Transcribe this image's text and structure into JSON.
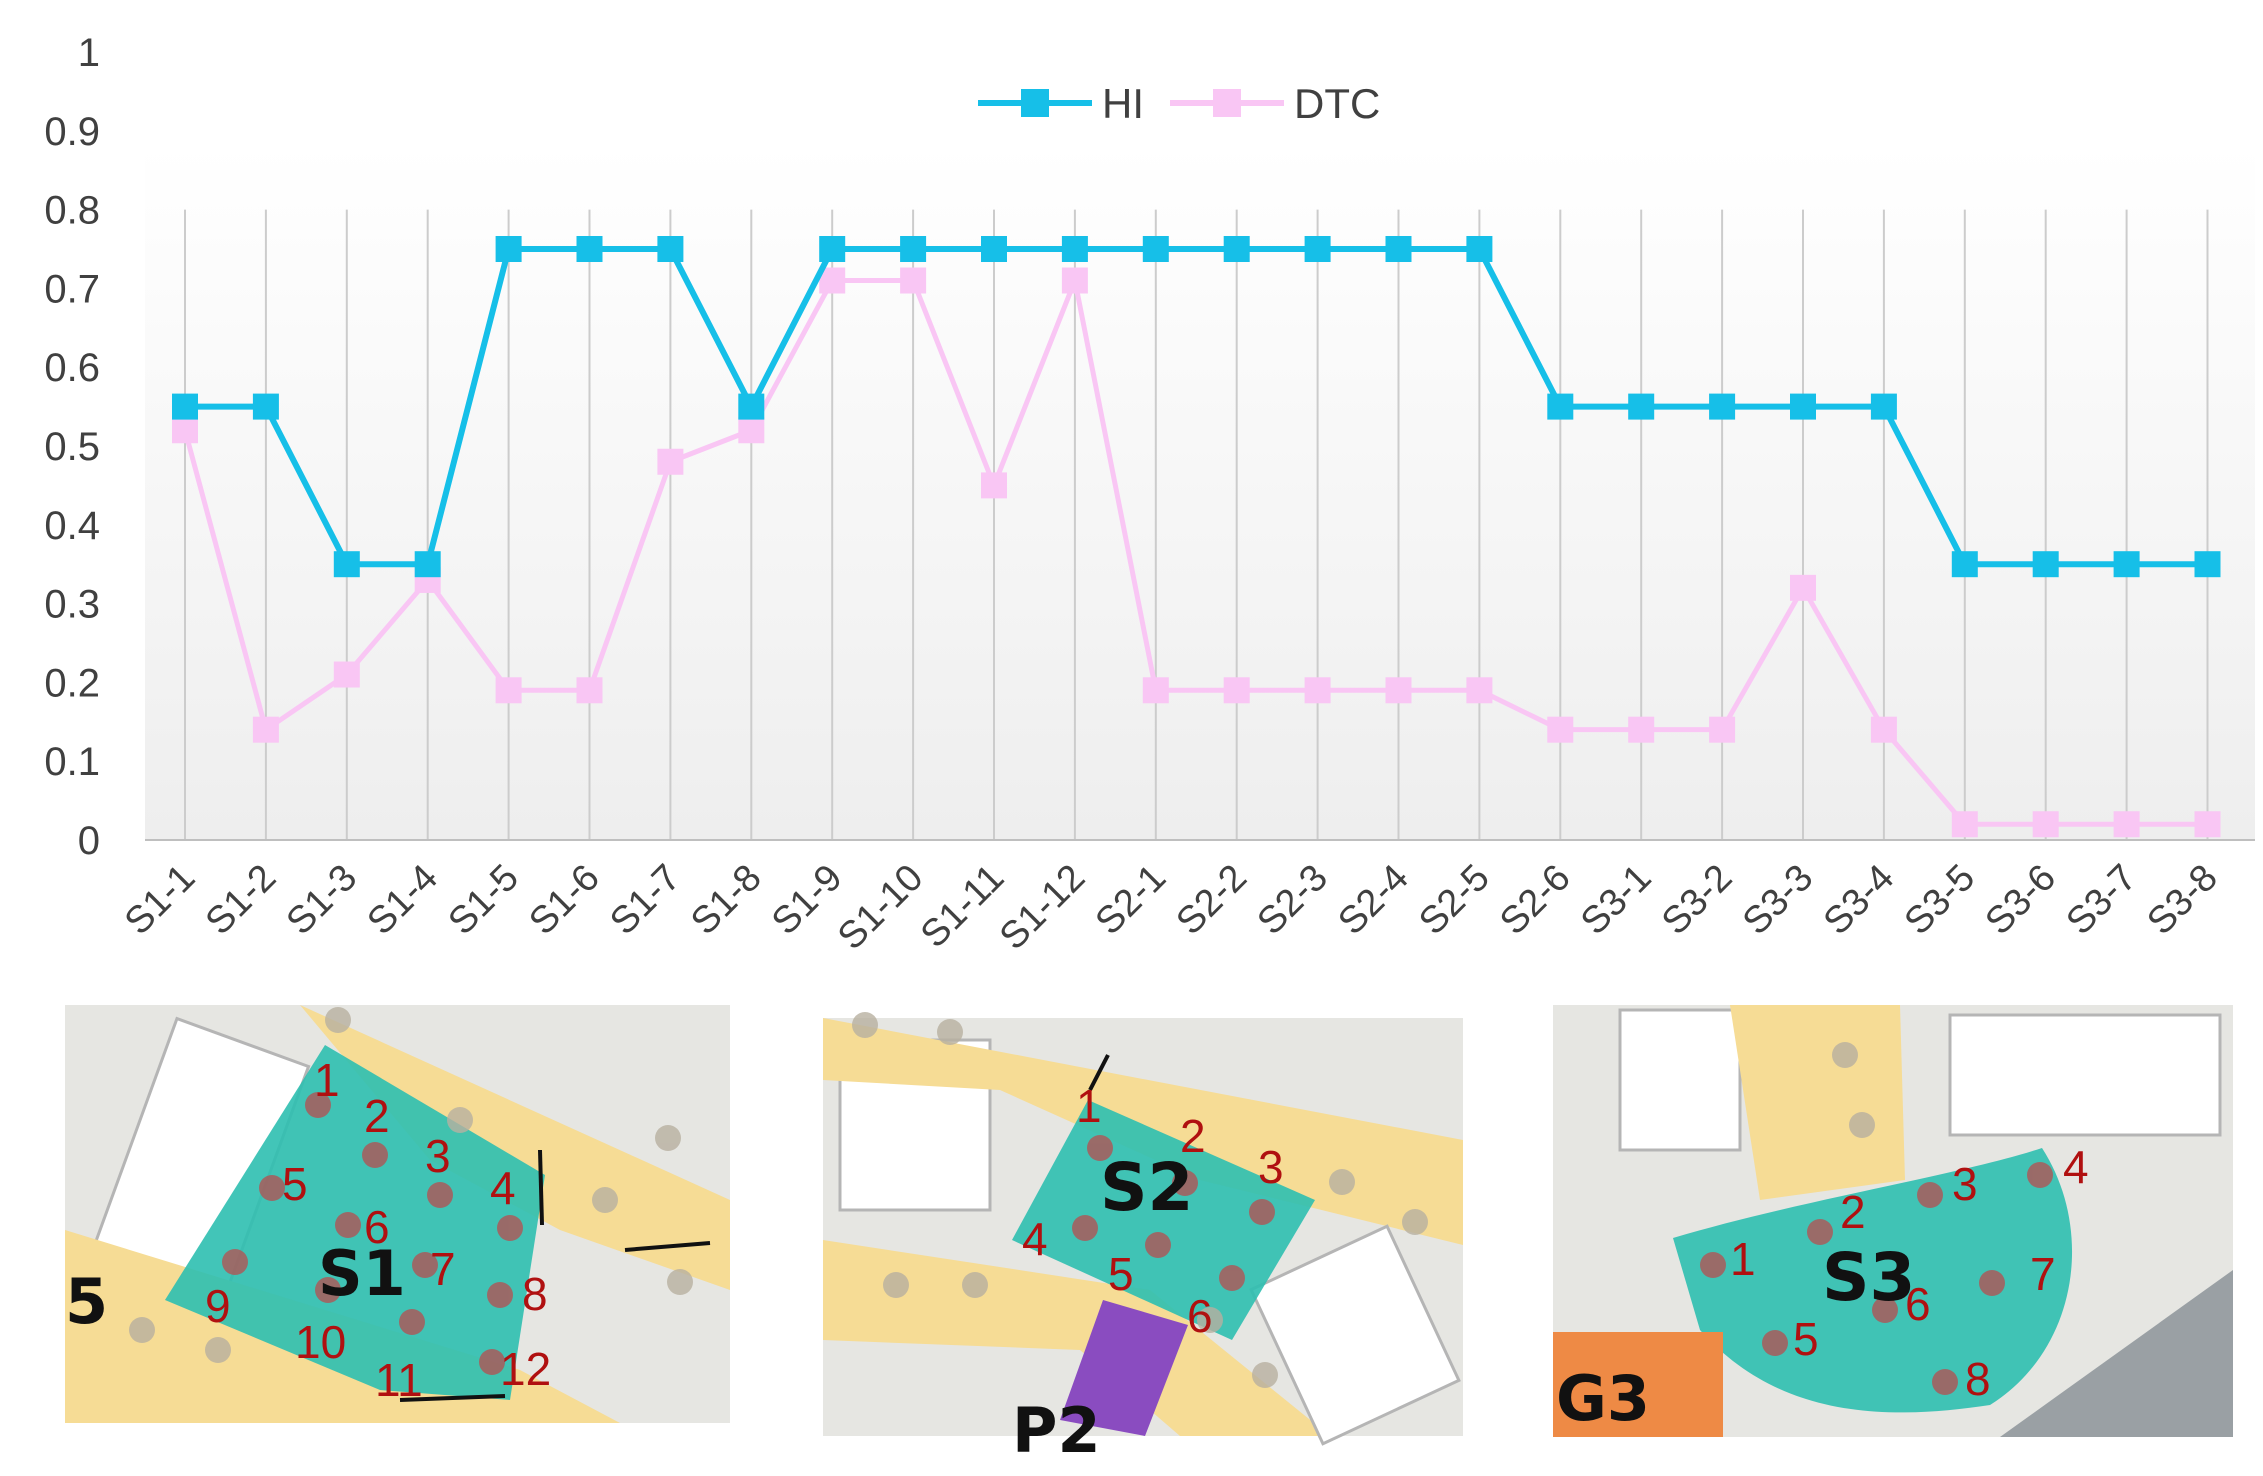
{
  "chart_data": {
    "type": "line",
    "categories": [
      "S1-1",
      "S1-2",
      "S1-3",
      "S1-4",
      "S1-5",
      "S1-6",
      "S1-7",
      "S1-8",
      "S1-9",
      "S1-10",
      "S1-11",
      "S1-12",
      "S2-1",
      "S2-2",
      "S2-3",
      "S2-4",
      "S2-5",
      "S2-6",
      "S3-1",
      "S3-2",
      "S3-3",
      "S3-4",
      "S3-5",
      "S3-6",
      "S3-7",
      "S3-8"
    ],
    "series": [
      {
        "name": "HI",
        "color": "#16bfe8",
        "values": [
          0.55,
          0.55,
          0.35,
          0.35,
          0.75,
          0.75,
          0.75,
          0.55,
          0.75,
          0.75,
          0.75,
          0.75,
          0.75,
          0.75,
          0.75,
          0.75,
          0.75,
          0.55,
          0.55,
          0.55,
          0.55,
          0.55,
          0.35,
          0.35,
          0.35,
          0.35
        ]
      },
      {
        "name": "DTC",
        "color": "#f9c6f4",
        "values": [
          0.52,
          0.14,
          0.21,
          0.33,
          0.19,
          0.19,
          0.48,
          0.52,
          0.71,
          0.71,
          0.45,
          0.71,
          0.19,
          0.19,
          0.19,
          0.19,
          0.19,
          0.14,
          0.14,
          0.14,
          0.32,
          0.14,
          0.02,
          0.02,
          0.02,
          0.02
        ]
      }
    ],
    "yticks": [
      "0",
      "0.1",
      "0.2",
      "0.3",
      "0.4",
      "0.5",
      "0.6",
      "0.7",
      "0.8",
      "0.9",
      "1"
    ],
    "ylim": [
      0,
      1
    ],
    "grid": "vertical",
    "legend_position": "top-center"
  },
  "maps": [
    {
      "site": "S1",
      "side_label": "5",
      "numbers": [
        "1",
        "2",
        "3",
        "4",
        "5",
        "6",
        "7",
        "8",
        "9",
        "10",
        "11",
        "12"
      ]
    },
    {
      "site": "S2",
      "side_label": "P2",
      "numbers": [
        "1",
        "2",
        "3",
        "4",
        "5",
        "6"
      ]
    },
    {
      "site": "S3",
      "side_label": "G3",
      "numbers": [
        "1",
        "2",
        "3",
        "4",
        "5",
        "6",
        "7",
        "8"
      ]
    }
  ]
}
